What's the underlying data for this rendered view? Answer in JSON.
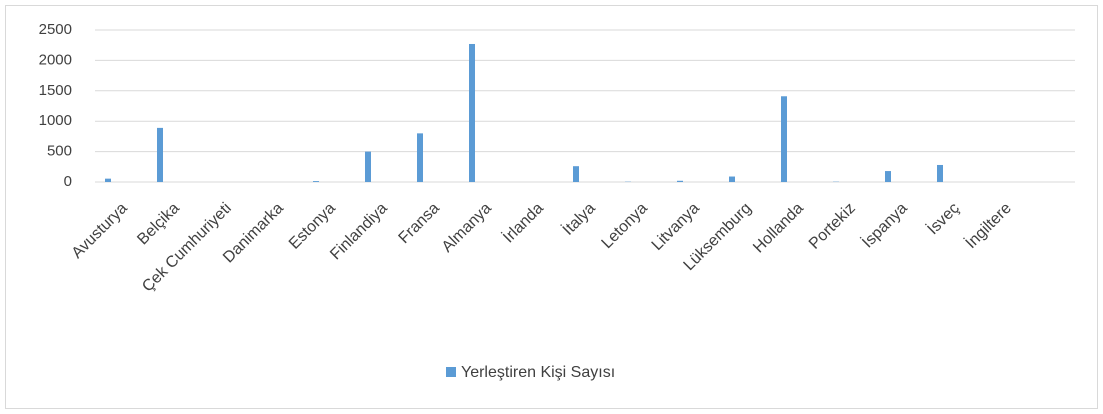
{
  "chart_data": {
    "type": "bar",
    "categories": [
      "Avusturya",
      "Belçika",
      "Çek Cumhuriyeti",
      "Danimarka",
      "Estonya",
      "Finlandiya",
      "Fransa",
      "Almanya",
      "İrlanda",
      "İtalya",
      "Letonya",
      "Litvanya",
      "Lüksemburg",
      "Hollanda",
      "Portekiz",
      "İspanya",
      "İsveç",
      "İngiltere"
    ],
    "series": [
      {
        "name": "Yerleştiren Kişi Sayısı",
        "color": "#5b9bd5",
        "values": [
          55,
          890,
          0,
          0,
          15,
          500,
          800,
          2270,
          0,
          260,
          5,
          20,
          90,
          1410,
          5,
          180,
          280,
          0
        ]
      }
    ],
    "ylim": [
      0,
      2500
    ],
    "yticks": [
      0,
      500,
      1000,
      1500,
      2000,
      2500
    ],
    "grid": true,
    "legend": "bottom"
  }
}
